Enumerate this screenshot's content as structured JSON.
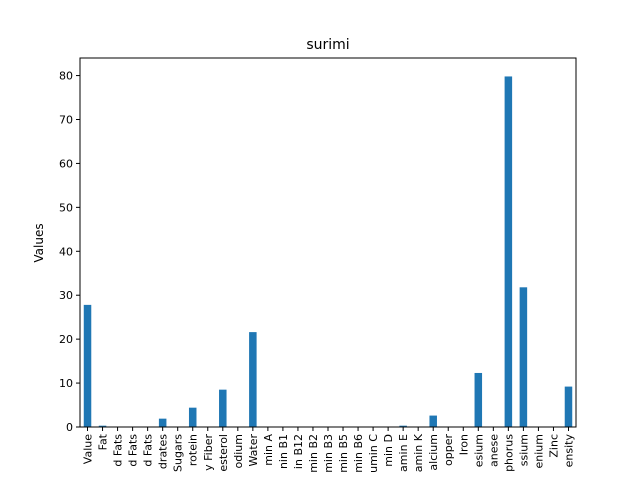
{
  "chart_data": {
    "type": "bar",
    "title": "surimi",
    "ylabel": "Values",
    "xlabel": "",
    "ylim": [
      0,
      84
    ],
    "yticks": [
      0,
      10,
      20,
      30,
      40,
      50,
      60,
      70,
      80
    ],
    "bar_color": "#1f77b4",
    "grid": false,
    "categories": [
      "Value",
      "Fat",
      "d Fats",
      "d Fats",
      "d Fats",
      "drates",
      "Sugars",
      "rotein",
      "y Fiber",
      "esterol",
      "odium",
      "Water",
      "min A",
      "nin B1",
      "in B12",
      "min B2",
      "min B3",
      "min B5",
      "min B6",
      "umin C",
      "min D",
      "amin E",
      "amin K",
      "alcium",
      "opper",
      "Iron",
      "esium",
      "anese",
      "phorus",
      "ssium",
      "enium",
      "Zinc",
      "ensity"
    ],
    "values": [
      27.8,
      0.3,
      0.1,
      0.1,
      0.1,
      1.9,
      0.0,
      4.4,
      0.0,
      8.5,
      0.0,
      21.6,
      0.0,
      0.0,
      0.0,
      0.0,
      0.0,
      0.0,
      0.0,
      0.0,
      0.0,
      0.3,
      0.0,
      2.6,
      0.0,
      0.0,
      12.3,
      0.0,
      79.8,
      31.8,
      0.0,
      0.0,
      9.2
    ]
  }
}
